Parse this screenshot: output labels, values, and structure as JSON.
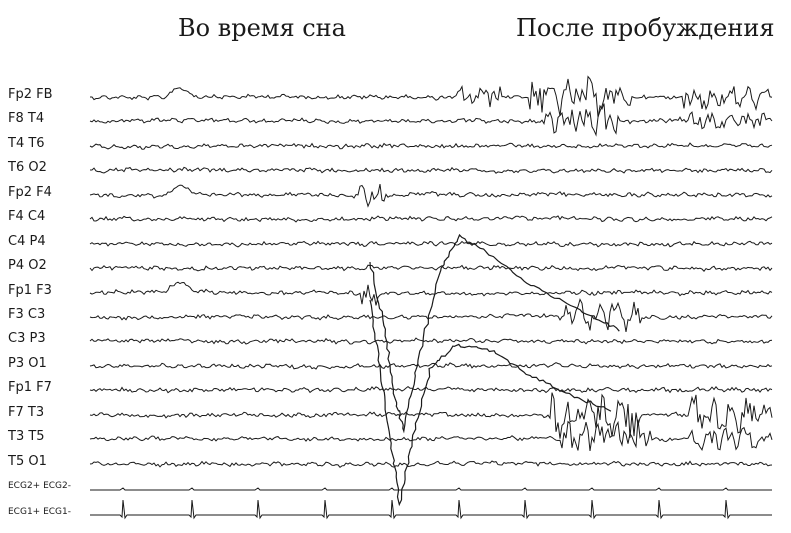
{
  "headings": {
    "sleep": "Во время сна",
    "awake": "После пробуждения"
  },
  "channels": [
    "Fp2 FB",
    "F8 T4",
    "T4 T6",
    "T6 O2",
    "Fp2 F4",
    "F4 C4",
    "C4 P4",
    "P4 O2",
    "Fp1 F3",
    "F3 C3",
    "C3 P3",
    "P3 O1",
    "Fp1 F7",
    "F7 T3",
    "T3 T5",
    "T5 O1"
  ],
  "ecg_channels": [
    "ECG2+ ECG2-",
    "ECG1+ ECG1-"
  ],
  "colors": {
    "ink": "#1a1a1a",
    "background": "#ffffff"
  }
}
